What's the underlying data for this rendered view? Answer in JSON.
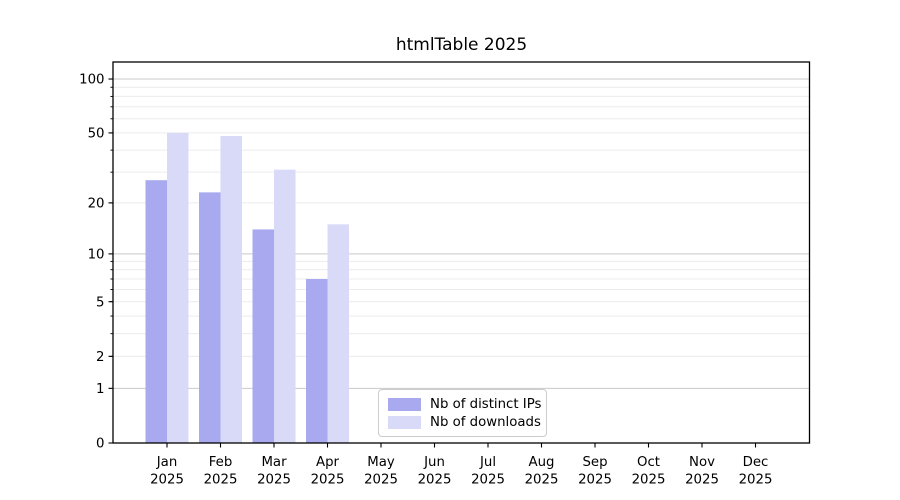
{
  "chart_data": {
    "type": "bar",
    "title": "htmlTable 2025",
    "categories": [
      "Jan",
      "Feb",
      "Mar",
      "Apr",
      "May",
      "Jun",
      "Jul",
      "Aug",
      "Sep",
      "Oct",
      "Nov",
      "Dec"
    ],
    "year_label": "2025",
    "series": [
      {
        "name": "Nb of distinct IPs",
        "color": "#a9a9f0",
        "values": [
          27,
          23,
          14,
          7,
          null,
          null,
          null,
          null,
          null,
          null,
          null,
          null
        ]
      },
      {
        "name": "Nb of downloads",
        "color": "#d9d9f8",
        "values": [
          50,
          48,
          31,
          15,
          null,
          null,
          null,
          null,
          null,
          null,
          null,
          null
        ]
      }
    ],
    "y_axis": {
      "scale": "log10(1+v)",
      "tick_labels": [
        0,
        1,
        2,
        5,
        10,
        20,
        50,
        100
      ],
      "major_grid_values": [
        1,
        10,
        100
      ],
      "minor_grid_values": [
        2,
        3,
        4,
        5,
        6,
        7,
        8,
        9,
        20,
        30,
        40,
        50,
        60,
        70,
        80,
        90
      ],
      "top_value": 125
    },
    "legend_position": "bottom-center",
    "grid": true
  },
  "colors": {
    "background": "#ffffff",
    "spine": "#000000",
    "text": "#000000",
    "major_grid": "#c9c9c9",
    "minor_grid": "#ececec",
    "legend_border": "#cccccc"
  }
}
